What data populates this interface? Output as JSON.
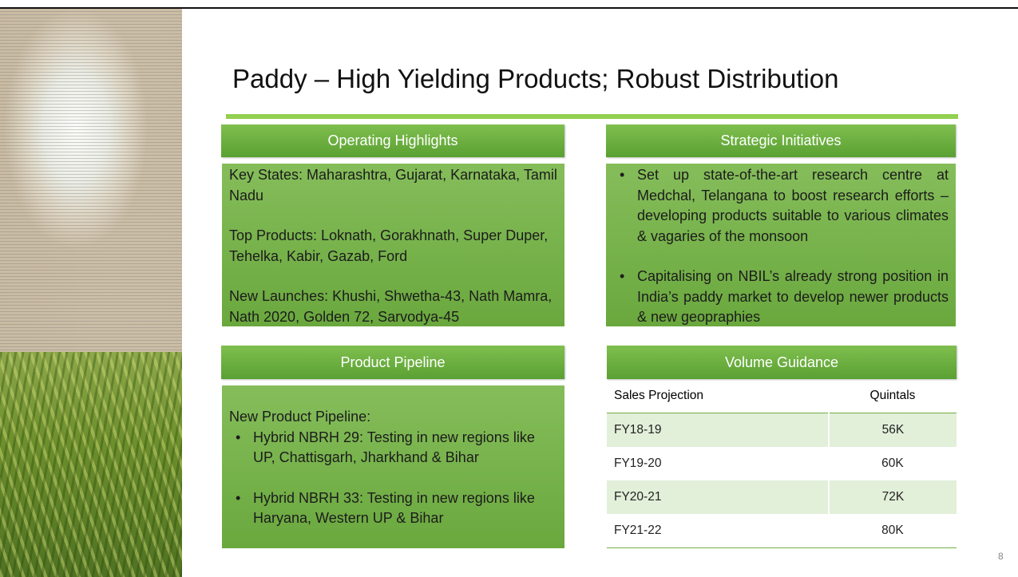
{
  "title": "Paddy – High Yielding Products; Robust Distribution",
  "operating_highlights": {
    "heading": "Operating Highlights",
    "paragraphs": [
      "Key States: Maharashtra, Gujarat, Karnataka, Tamil Nadu",
      "Top Products: Loknath, Gorakhnath, Super Duper, Tehelka, Kabir, Gazab, Ford",
      "New Launches: Khushi, Shwetha-43, Nath Mamra, Nath 2020, Golden 72, Sarvodya-45"
    ]
  },
  "strategic_initiatives": {
    "heading": "Strategic Initiatives",
    "bullets": [
      "Set up state-of-the-art research centre at Medchal, Telangana to boost research efforts – developing products suitable to various climates & vagaries of the monsoon",
      "Capitalising on NBIL’s already strong position in India’s paddy market to develop newer products & new geopraphies"
    ]
  },
  "product_pipeline": {
    "heading": "Product Pipeline",
    "intro": "New Product Pipeline:",
    "bullets": [
      "Hybrid NBRH 29: Testing in new regions like UP, Chattisgarh, Jharkhand & Bihar",
      "Hybrid NBRH 33: Testing in new regions like Haryana, Western UP & Bihar"
    ]
  },
  "volume_guidance": {
    "heading": "Volume Guidance",
    "columns": [
      "Sales Projection",
      "Quintals"
    ],
    "rows": [
      [
        "FY18-19",
        "56K"
      ],
      [
        "FY19-20",
        "60K"
      ],
      [
        "FY20-21",
        "72K"
      ],
      [
        "FY21-22",
        "80K"
      ]
    ]
  },
  "page_number": "8"
}
